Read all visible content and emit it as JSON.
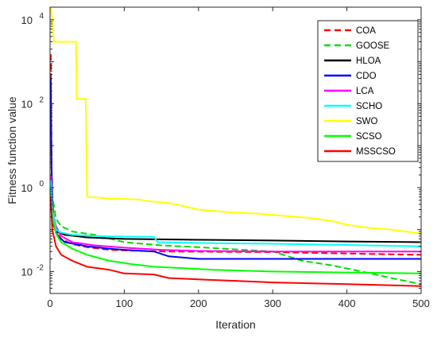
{
  "chart_data": {
    "type": "line",
    "title": "",
    "xlabel": "Iteration",
    "ylabel": "Fitness function value",
    "xlim": [
      0,
      500
    ],
    "ylim": [
      0.003,
      20000
    ],
    "yscale": "log",
    "grid": false,
    "legend_position": "top-right",
    "x_ticks": [
      "0",
      "100",
      "200",
      "300",
      "400",
      "500"
    ],
    "y_ticks": [
      {
        "value": 0.01,
        "base": "10",
        "exp": "-2"
      },
      {
        "value": 1,
        "base": "10",
        "exp": "0"
      },
      {
        "value": 100,
        "base": "10",
        "exp": "2"
      },
      {
        "value": 10000,
        "base": "10",
        "exp": "4"
      }
    ],
    "series": [
      {
        "name": "COA",
        "color": "#ff0000",
        "dash": "8,4",
        "points": [
          [
            1,
            1500
          ],
          [
            2,
            3
          ],
          [
            3,
            0.6
          ],
          [
            5,
            0.15
          ],
          [
            8,
            0.09
          ],
          [
            15,
            0.06
          ],
          [
            30,
            0.045
          ],
          [
            50,
            0.038
          ],
          [
            80,
            0.033
          ],
          [
            120,
            0.031
          ],
          [
            160,
            0.03
          ],
          [
            300,
            0.029
          ],
          [
            400,
            0.027
          ],
          [
            500,
            0.025
          ]
        ]
      },
      {
        "name": "GOOSE",
        "color": "#00dd00",
        "dash": "8,4",
        "points": [
          [
            1,
            0.6
          ],
          [
            2,
            0.9
          ],
          [
            4,
            0.5
          ],
          [
            8,
            0.18
          ],
          [
            15,
            0.12
          ],
          [
            30,
            0.09
          ],
          [
            60,
            0.075
          ],
          [
            100,
            0.05
          ],
          [
            150,
            0.042
          ],
          [
            200,
            0.038
          ],
          [
            260,
            0.033
          ],
          [
            300,
            0.03
          ],
          [
            340,
            0.018
          ],
          [
            380,
            0.014
          ],
          [
            420,
            0.01
          ],
          [
            460,
            0.007
          ],
          [
            500,
            0.005
          ]
        ]
      },
      {
        "name": "HLOA",
        "color": "#000000",
        "dash": "",
        "points": [
          [
            1,
            0.5
          ],
          [
            3,
            0.15
          ],
          [
            8,
            0.09
          ],
          [
            20,
            0.075
          ],
          [
            50,
            0.065
          ],
          [
            100,
            0.06
          ],
          [
            200,
            0.057
          ],
          [
            300,
            0.055
          ],
          [
            400,
            0.052
          ],
          [
            500,
            0.05
          ]
        ]
      },
      {
        "name": "CDO",
        "color": "#0000ff",
        "dash": "",
        "points": [
          [
            1,
            400
          ],
          [
            2,
            3
          ],
          [
            3,
            0.5
          ],
          [
            5,
            0.15
          ],
          [
            10,
            0.07
          ],
          [
            20,
            0.05
          ],
          [
            50,
            0.04
          ],
          [
            80,
            0.035
          ],
          [
            100,
            0.033
          ],
          [
            140,
            0.03
          ],
          [
            160,
            0.023
          ],
          [
            200,
            0.02
          ],
          [
            300,
            0.02
          ],
          [
            500,
            0.02
          ]
        ]
      },
      {
        "name": "LCA",
        "color": "#ff00ff",
        "dash": "",
        "points": [
          [
            1,
            2
          ],
          [
            3,
            0.3
          ],
          [
            8,
            0.12
          ],
          [
            15,
            0.07
          ],
          [
            30,
            0.05
          ],
          [
            60,
            0.042
          ],
          [
            100,
            0.037
          ],
          [
            150,
            0.033
          ],
          [
            200,
            0.031
          ],
          [
            300,
            0.03
          ],
          [
            400,
            0.03
          ],
          [
            500,
            0.03
          ]
        ]
      },
      {
        "name": "SCHO",
        "color": "#00ffff",
        "dash": "",
        "points": [
          [
            1,
            1.5
          ],
          [
            3,
            0.3
          ],
          [
            8,
            0.1
          ],
          [
            15,
            0.085
          ],
          [
            30,
            0.075
          ],
          [
            60,
            0.07
          ],
          [
            100,
            0.068
          ],
          [
            140,
            0.067
          ],
          [
            145,
            0.05
          ],
          [
            200,
            0.048
          ],
          [
            300,
            0.046
          ],
          [
            400,
            0.043
          ],
          [
            500,
            0.04
          ]
        ]
      },
      {
        "name": "SWO",
        "color": "#ffff00",
        "dash": "",
        "points": [
          [
            1,
            20000
          ],
          [
            3,
            10000
          ],
          [
            5,
            3000
          ],
          [
            35,
            3000
          ],
          [
            36,
            130
          ],
          [
            48,
            130
          ],
          [
            50,
            0.6
          ],
          [
            80,
            0.55
          ],
          [
            120,
            0.52
          ],
          [
            130,
            0.48
          ],
          [
            150,
            0.45
          ],
          [
            170,
            0.4
          ],
          [
            200,
            0.3
          ],
          [
            240,
            0.26
          ],
          [
            280,
            0.24
          ],
          [
            320,
            0.21
          ],
          [
            350,
            0.19
          ],
          [
            380,
            0.16
          ],
          [
            400,
            0.13
          ],
          [
            430,
            0.11
          ],
          [
            460,
            0.1
          ],
          [
            480,
            0.09
          ],
          [
            500,
            0.08
          ]
        ]
      },
      {
        "name": "SCSO",
        "color": "#00ff00",
        "dash": "",
        "points": [
          [
            1,
            0.7
          ],
          [
            3,
            0.2
          ],
          [
            8,
            0.08
          ],
          [
            15,
            0.05
          ],
          [
            30,
            0.035
          ],
          [
            50,
            0.025
          ],
          [
            80,
            0.018
          ],
          [
            110,
            0.015
          ],
          [
            140,
            0.013
          ],
          [
            180,
            0.012
          ],
          [
            220,
            0.011
          ],
          [
            300,
            0.01
          ],
          [
            400,
            0.0095
          ],
          [
            500,
            0.009
          ]
        ]
      },
      {
        "name": "MSSCSO",
        "color": "#ff0000",
        "dash": "",
        "points": [
          [
            1,
            0.6
          ],
          [
            3,
            0.1
          ],
          [
            8,
            0.04
          ],
          [
            15,
            0.025
          ],
          [
            30,
            0.018
          ],
          [
            50,
            0.013
          ],
          [
            80,
            0.011
          ],
          [
            100,
            0.009
          ],
          [
            140,
            0.0085
          ],
          [
            160,
            0.007
          ],
          [
            200,
            0.0065
          ],
          [
            250,
            0.006
          ],
          [
            300,
            0.0055
          ],
          [
            400,
            0.005
          ],
          [
            500,
            0.0045
          ]
        ]
      }
    ]
  }
}
